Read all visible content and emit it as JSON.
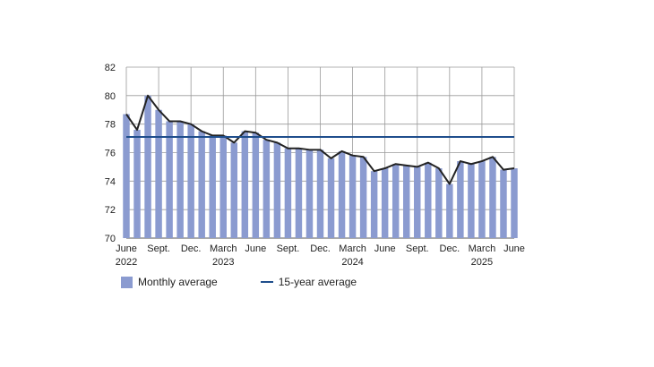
{
  "chart_data": {
    "type": "bar",
    "x_tick_labels": [
      {
        "index": 0,
        "line1": "June",
        "line2": "2022"
      },
      {
        "index": 3,
        "line1": "Sept.",
        "line2": ""
      },
      {
        "index": 6,
        "line1": "Dec.",
        "line2": ""
      },
      {
        "index": 9,
        "line1": "March",
        "line2": "2023"
      },
      {
        "index": 12,
        "line1": "June",
        "line2": ""
      },
      {
        "index": 15,
        "line1": "Sept.",
        "line2": ""
      },
      {
        "index": 18,
        "line1": "Dec.",
        "line2": ""
      },
      {
        "index": 21,
        "line1": "March",
        "line2": "2024"
      },
      {
        "index": 24,
        "line1": "June",
        "line2": ""
      },
      {
        "index": 27,
        "line1": "Sept.",
        "line2": ""
      },
      {
        "index": 30,
        "line1": "Dec.",
        "line2": ""
      },
      {
        "index": 33,
        "line1": "March",
        "line2": "2025"
      },
      {
        "index": 36,
        "line1": "June",
        "line2": ""
      }
    ],
    "y_ticks": [
      "70",
      "72",
      "74",
      "76",
      "78",
      "80",
      "82"
    ],
    "ylim": [
      70,
      82
    ],
    "grid": true,
    "series": [
      {
        "name": "Monthly average",
        "kind": "bar",
        "color": "#8b9bd0",
        "values": [
          78.7,
          77.6,
          80.0,
          79.0,
          78.2,
          78.2,
          78.0,
          77.5,
          77.2,
          77.2,
          76.7,
          77.5,
          77.4,
          76.9,
          76.7,
          76.3,
          76.3,
          76.2,
          76.2,
          75.6,
          76.1,
          75.8,
          75.7,
          74.7,
          74.9,
          75.2,
          75.1,
          75.0,
          75.3,
          74.9,
          73.8,
          75.4,
          75.2,
          75.4,
          75.7,
          74.8,
          74.9
        ]
      },
      {
        "name": "",
        "kind": "line",
        "color": "#222222",
        "values": [
          78.7,
          77.6,
          80.0,
          79.0,
          78.2,
          78.2,
          78.0,
          77.5,
          77.2,
          77.2,
          76.7,
          77.5,
          77.4,
          76.9,
          76.7,
          76.3,
          76.3,
          76.2,
          76.2,
          75.6,
          76.1,
          75.8,
          75.7,
          74.7,
          74.9,
          75.2,
          75.1,
          75.0,
          75.3,
          74.9,
          73.8,
          75.4,
          75.2,
          75.4,
          75.7,
          74.8,
          74.9
        ]
      },
      {
        "name": "15-year average",
        "kind": "hline",
        "color": "#1f4e8c",
        "value": 77.1
      }
    ]
  },
  "legend": {
    "bar_label": "Monthly average",
    "line_label": "15-year average"
  }
}
